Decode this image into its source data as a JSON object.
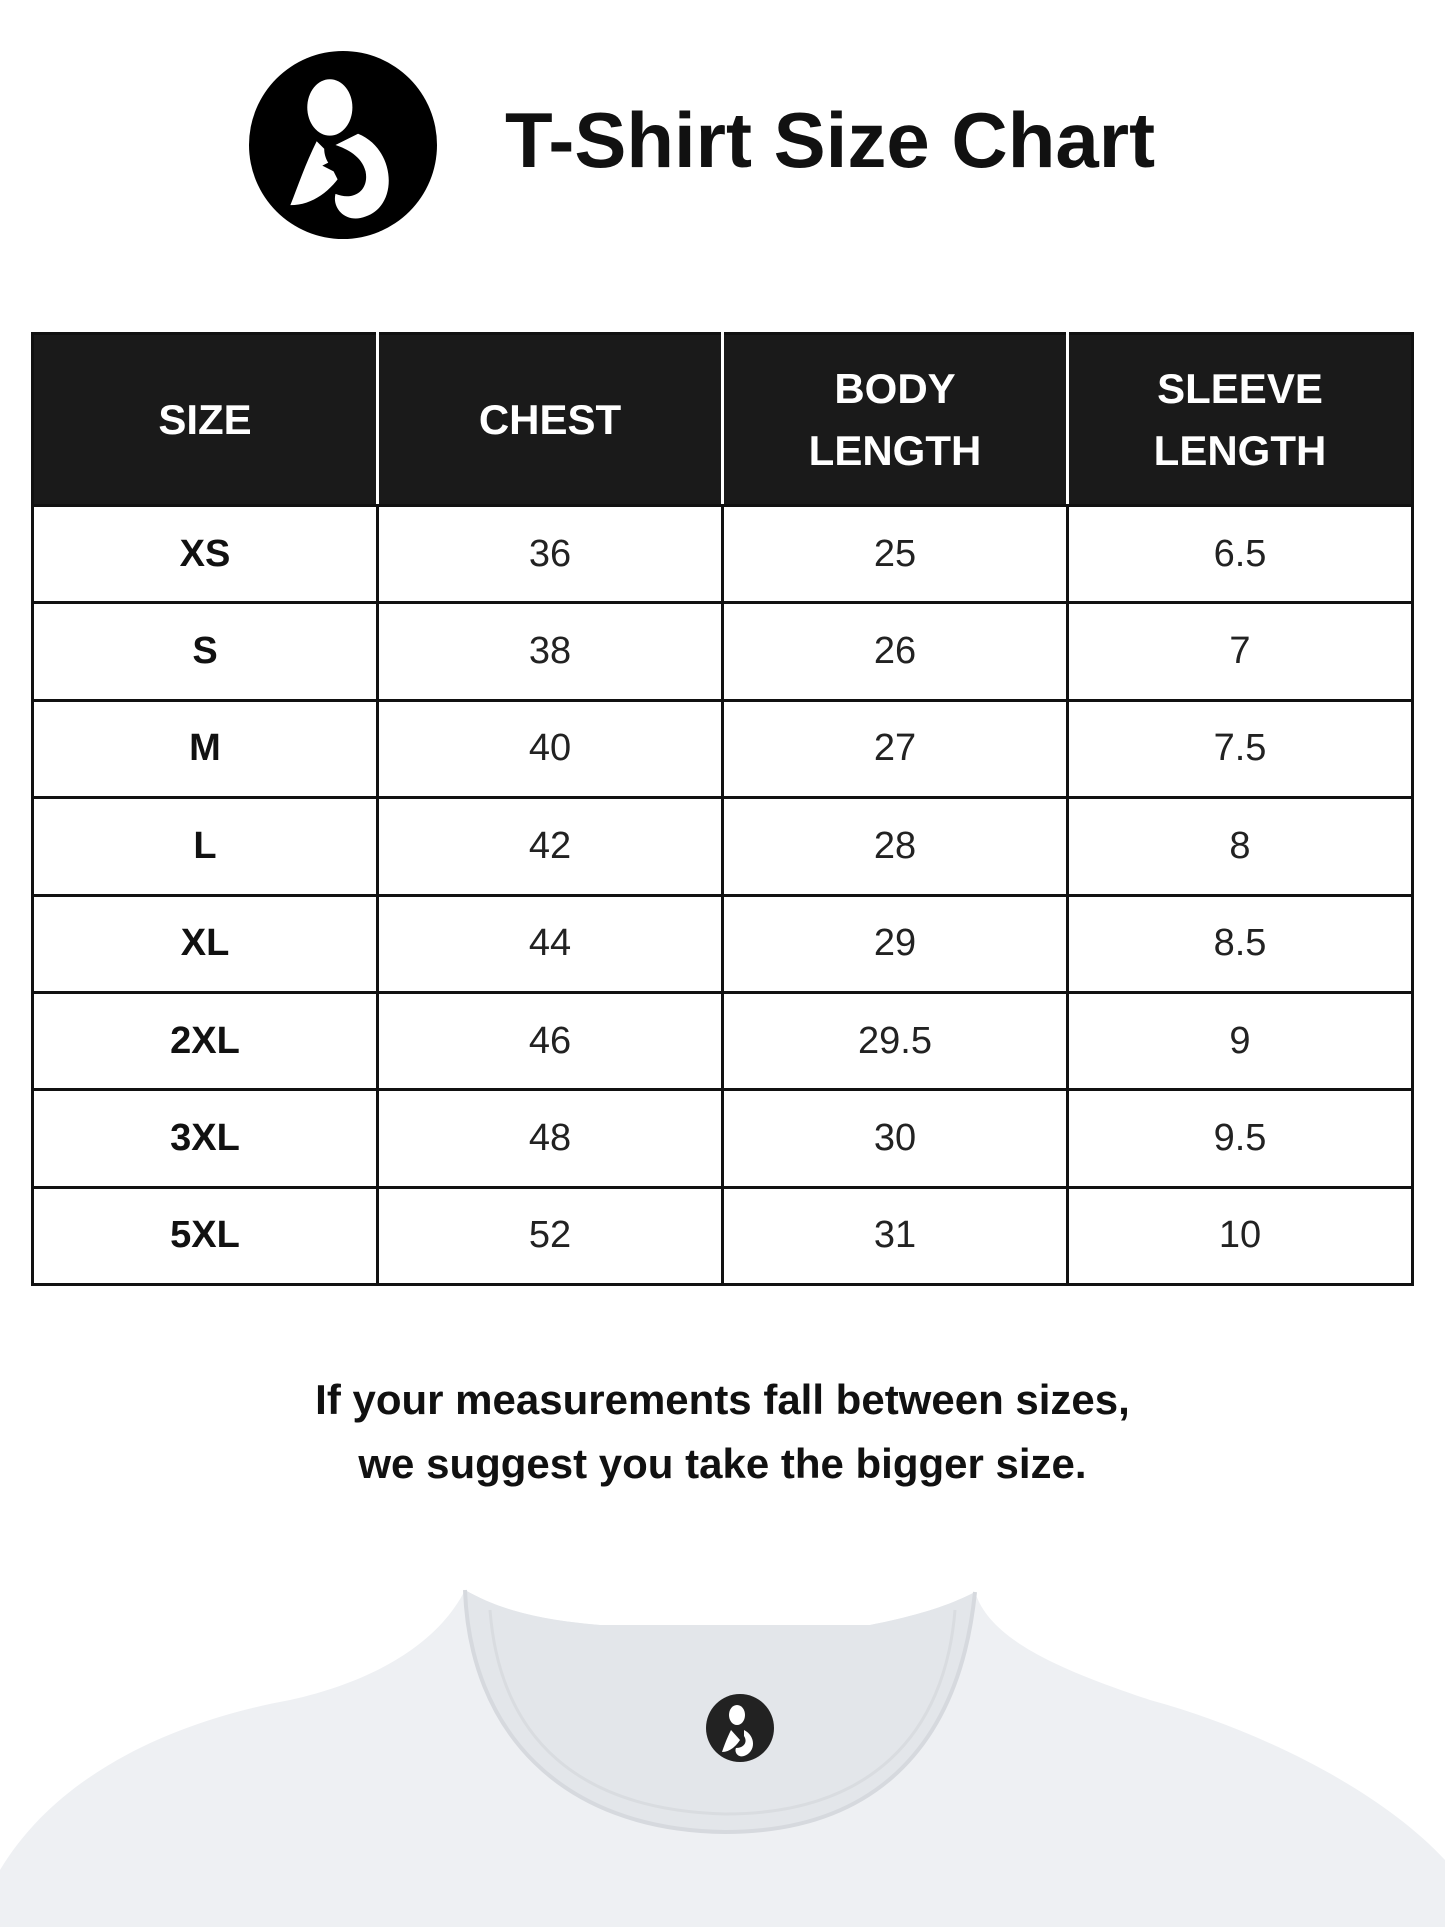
{
  "header": {
    "title": "T-Shirt Size Chart",
    "logo": "mother-and-baby-logo"
  },
  "table": {
    "columns": [
      "SIZE",
      "CHEST",
      "BODY\nLENGTH",
      "SLEEVE\nLENGTH"
    ],
    "col_labels": [
      [
        "SIZE"
      ],
      [
        "CHEST"
      ],
      [
        "BODY",
        "LENGTH"
      ],
      [
        "SLEEVE",
        "LENGTH"
      ]
    ],
    "rows": [
      [
        "XS",
        "36",
        "25",
        "6.5"
      ],
      [
        "S",
        "38",
        "26",
        "7"
      ],
      [
        "M",
        "40",
        "27",
        "7.5"
      ],
      [
        "L",
        "42",
        "28",
        "8"
      ],
      [
        "XL",
        "44",
        "29",
        "8.5"
      ],
      [
        "2XL",
        "46",
        "29.5",
        "9"
      ],
      [
        "3XL",
        "48",
        "30",
        "9.5"
      ],
      [
        "5XL",
        "52",
        "31",
        "10"
      ]
    ]
  },
  "note": {
    "line1": "If your measurements fall between sizes,",
    "line2": "we suggest you take the bigger size."
  },
  "colors": {
    "header_bg": "#1a1a1a",
    "border": "#111111",
    "shirt": "#eef0f3"
  }
}
